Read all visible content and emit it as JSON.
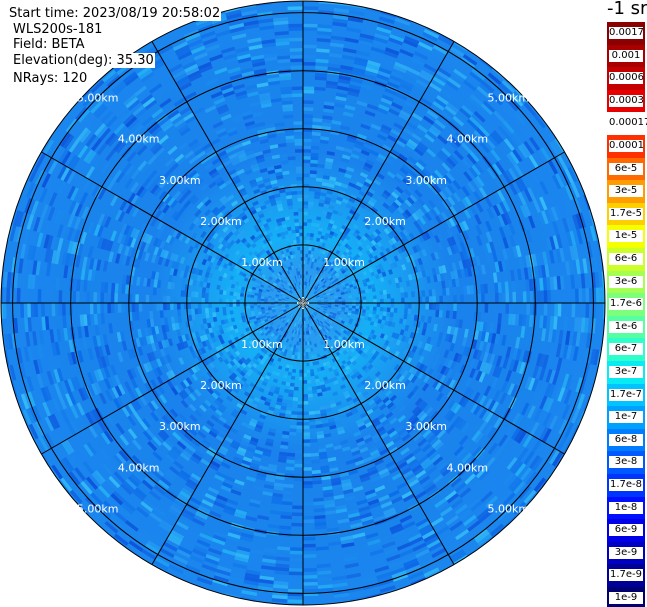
{
  "info": {
    "start_time": "Start time: 2023/08/19 20:58:02",
    "device": "WLS200s-181",
    "field": "Field: BETA",
    "elevation": "Elevation(deg): 35.30",
    "nrays": "NRays: 120"
  },
  "colorbar": {
    "unit_label": "-1 sr",
    "segments": [
      {
        "label": "0.0017",
        "color": "#8b0000"
      },
      {
        "label": "0.001",
        "color": "#a80000"
      },
      {
        "label": "0.0006",
        "color": "#c40000"
      },
      {
        "label": "0.0003",
        "color": "#e80000"
      },
      {
        "label": "0.00017",
        "color": "#ffffff"
      },
      {
        "label": "0.0001",
        "color": "#ff3000"
      },
      {
        "label": "6e-5",
        "color": "#ff6a00"
      },
      {
        "label": "3e-5",
        "color": "#ff9c00"
      },
      {
        "label": "1.7e-5",
        "color": "#ffce00"
      },
      {
        "label": "1e-5",
        "color": "#f4ff00"
      },
      {
        "label": "6e-6",
        "color": "#ccff2a"
      },
      {
        "label": "3e-6",
        "color": "#a4ff52"
      },
      {
        "label": "1.7e-6",
        "color": "#7cff7a"
      },
      {
        "label": "1e-6",
        "color": "#55ffa2"
      },
      {
        "label": "6e-7",
        "color": "#2effca"
      },
      {
        "label": "3e-7",
        "color": "#0aeaf2"
      },
      {
        "label": "1.7e-7",
        "color": "#00c4ff"
      },
      {
        "label": "1e-7",
        "color": "#00a0ff"
      },
      {
        "label": "6e-8",
        "color": "#007cff"
      },
      {
        "label": "3e-8",
        "color": "#0058ff"
      },
      {
        "label": "1.7e-8",
        "color": "#0034ff"
      },
      {
        "label": "1e-8",
        "color": "#0010ff"
      },
      {
        "label": "6e-9",
        "color": "#0000e8"
      },
      {
        "label": "3e-9",
        "color": "#0000c0"
      },
      {
        "label": "1.7e-9",
        "color": "#000098"
      },
      {
        "label": "1e-9",
        "color": "#000070"
      }
    ]
  },
  "chart_data": {
    "type": "heatmap",
    "projection": "polar-ppi",
    "field": "BETA",
    "nrays": 120,
    "elevation_deg": 35.3,
    "range_max_km": 5.2,
    "range_rings_km": [
      1,
      2,
      3,
      4,
      5
    ],
    "radial_lines_deg": [
      0,
      30,
      60,
      90,
      120,
      150,
      180,
      210,
      240,
      270,
      300,
      330
    ],
    "ring_labels": [
      {
        "range_km": 1,
        "text": "1.00km",
        "azimuths_deg": [
          315,
          45,
          225,
          135
        ]
      },
      {
        "range_km": 2,
        "text": "2.00km",
        "azimuths_deg": [
          315,
          45,
          225,
          135
        ]
      },
      {
        "range_km": 3,
        "text": "3.00km",
        "azimuths_deg": [
          315,
          45,
          225,
          135
        ]
      },
      {
        "range_km": 4,
        "text": "4.00km",
        "azimuths_deg": [
          315,
          45,
          225,
          135
        ]
      },
      {
        "range_km": 5,
        "text": "5.00km",
        "azimuths_deg": [
          315,
          45,
          225,
          135
        ]
      }
    ],
    "profile": [
      {
        "range_km": 0.0,
        "color": "#2aa6f2"
      },
      {
        "range_km": 0.6,
        "color": "#2a9aef"
      },
      {
        "range_km": 1.2,
        "color": "#14b0f6"
      },
      {
        "range_km": 1.9,
        "color": "#1a98f0"
      },
      {
        "range_km": 2.6,
        "color": "#1a82ec"
      },
      {
        "range_km": 5.2,
        "color": "#1a86ee"
      }
    ],
    "speckle_colors": [
      "#0a6ae8",
      "#1a8af0",
      "#2aa0f4",
      "#0e58e0",
      "#26b6f6",
      "#1276ea",
      "#38c4f8",
      "#0a4cd8"
    ],
    "colormap": "jet-log",
    "value_range": [
      "1e-9",
      "0.0017"
    ]
  }
}
